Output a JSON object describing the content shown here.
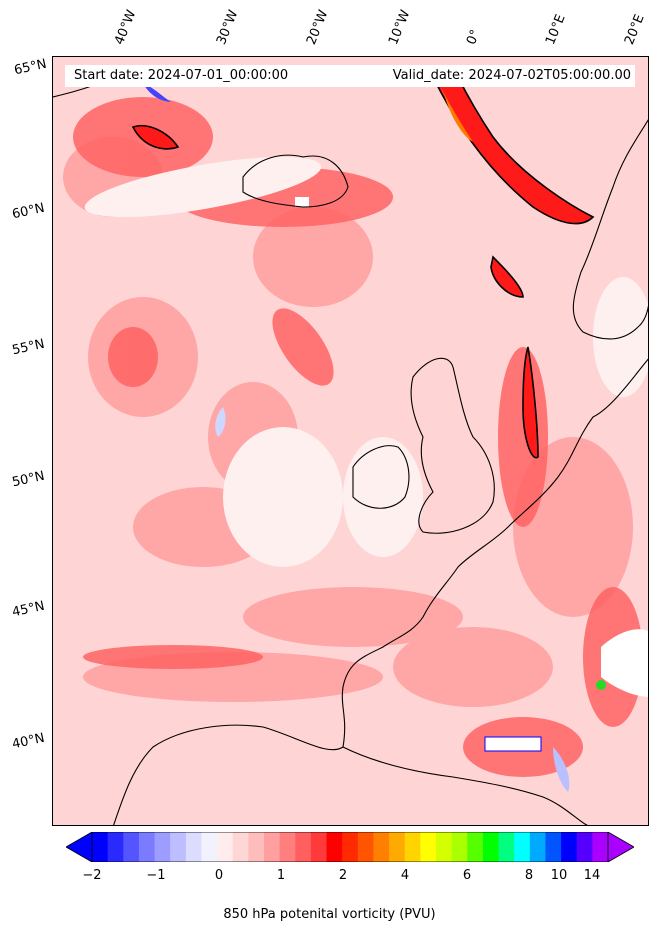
{
  "info": {
    "start_date": "Start date: 2024-07-01_00:00:00",
    "valid_date": "Valid_date: 2024-07-02T05:00:00.00"
  },
  "longitude_labels": [
    "40°W",
    "30°W",
    "20°W",
    "10°W",
    "0°",
    "10°E",
    "20°E"
  ],
  "latitude_labels": [
    "65°N",
    "60°N",
    "55°N",
    "50°N",
    "45°N",
    "40°N"
  ],
  "colorbar": {
    "title": "850 hPa potenital vorticity (PVU)",
    "tick_labels": [
      "−2",
      "−1",
      "0",
      "1",
      "2",
      "4",
      "6",
      "8",
      "10",
      "14"
    ],
    "colors": [
      "#0000ff",
      "#2a2aff",
      "#5555ff",
      "#7b7bff",
      "#9d9dff",
      "#bdbdff",
      "#dcdcff",
      "#f2f2ff",
      "#ffeded",
      "#ffd6d6",
      "#ffbcbc",
      "#ff9f9f",
      "#ff7f7f",
      "#ff5f5f",
      "#ff3a3a",
      "#ff0000",
      "#ff2a00",
      "#ff5500",
      "#ff8000",
      "#ffaa00",
      "#ffd400",
      "#ffff00",
      "#d4ff00",
      "#aaff00",
      "#55ff00",
      "#00ff00",
      "#00ff80",
      "#00ffff",
      "#00aaff",
      "#0055ff",
      "#0000ff",
      "#5500ff",
      "#aa00ff"
    ],
    "extend_colors": {
      "low": "#0000ff",
      "high": "#aa00ff"
    }
  },
  "contour_level": "2"
}
